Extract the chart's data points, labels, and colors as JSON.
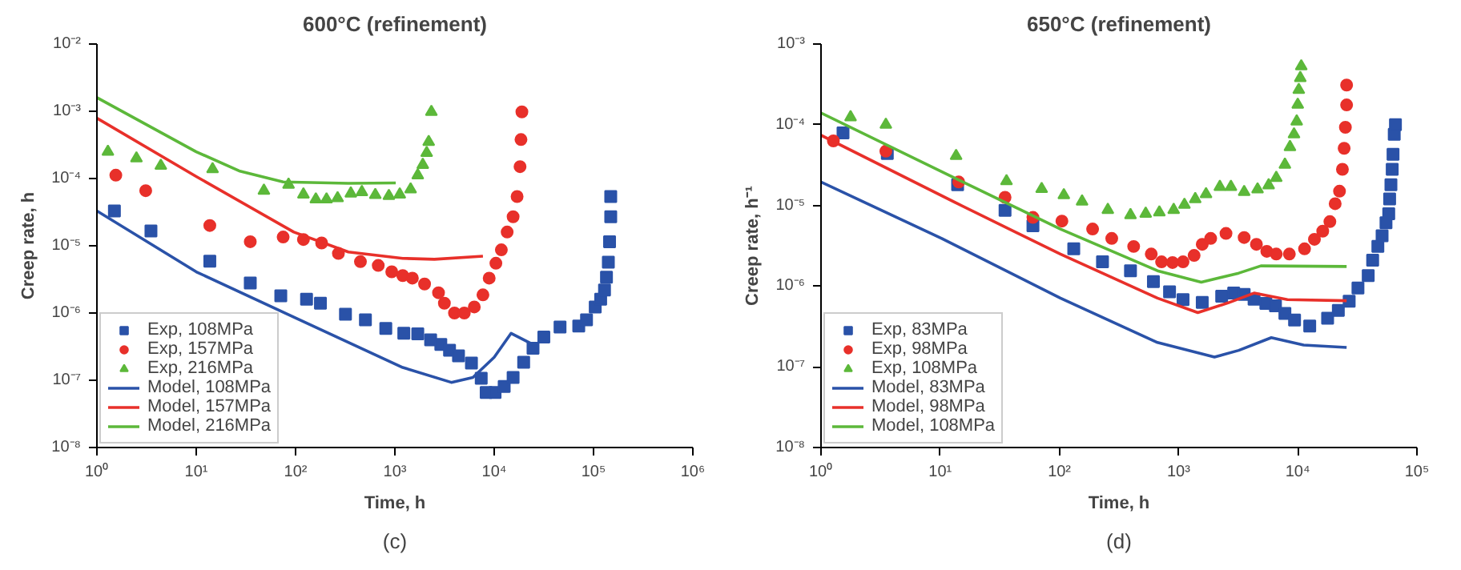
{
  "chart_data": [
    {
      "type": "scatter",
      "title": "600°C (refinement)",
      "xlabel": "Time, h",
      "ylabel": "Creep rate, h",
      "annotations": [
        "(c)"
      ],
      "log": "xy",
      "legend": "bottom left",
      "grid": false,
      "xlim": [
        1,
        1000000
      ],
      "xticks": [
        {
          "value": 1,
          "label": "10⁰"
        },
        {
          "value": 10,
          "label": "10¹"
        },
        {
          "value": 100,
          "label": "10²"
        },
        {
          "value": 1000,
          "label": "10³"
        },
        {
          "value": 10000,
          "label": "10⁴"
        },
        {
          "value": 100000,
          "label": "10⁵"
        },
        {
          "value": 1000000,
          "label": "10⁶"
        }
      ],
      "ylim": [
        1e-08,
        0.01
      ],
      "yticks": [
        {
          "value": 1e-08,
          "label": "10⁻⁸"
        },
        {
          "value": 1e-07,
          "label": "10⁻⁷"
        },
        {
          "value": 1e-06,
          "label": "10⁻⁶"
        },
        {
          "value": 1e-05,
          "label": "10⁻⁵"
        },
        {
          "value": 0.0001,
          "label": "10⁻⁴"
        },
        {
          "value": 0.001,
          "label": "10⁻³"
        },
        {
          "value": 0.01,
          "label": "10⁻²"
        }
      ],
      "series": [
        {
          "name": "Exp, 108MPa",
          "marker": "square",
          "color": "#2a52a8",
          "x": [
            1.5,
            3.5,
            13.7,
            35,
            71,
            129,
            178,
            318,
            505,
            810,
            1230,
            1700,
            2290,
            2900,
            3550,
            4370,
            5900,
            7400,
            8300,
            10200,
            12600,
            15500,
            19800,
            24600,
            31600,
            46000,
            71000,
            85000,
            104000,
            118000,
            129000,
            135000,
            141000,
            145000,
            149000,
            149000
          ],
          "values": [
            3.3e-05,
            1.66e-05,
            5.9e-06,
            2.8e-06,
            1.8e-06,
            1.6e-06,
            1.4e-06,
            9.6e-07,
            7.9e-07,
            5.9e-07,
            5e-07,
            4.9e-07,
            4e-07,
            3.4e-07,
            2.8e-07,
            2.3e-07,
            1.8e-07,
            1.07e-07,
            6.6e-08,
            6.6e-08,
            8.1e-08,
            1.1e-07,
            1.85e-07,
            3e-07,
            4.4e-07,
            6.2e-07,
            6.4e-07,
            7.9e-07,
            1.23e-06,
            1.6e-06,
            2.2e-06,
            3.4e-06,
            5.7e-06,
            1.15e-05,
            2.7e-05,
            5.4e-05
          ]
        },
        {
          "name": "Exp, 157MPa",
          "marker": "circle",
          "color": "#e8302a",
          "x": [
            1.55,
            3.1,
            13.7,
            35,
            75,
            120,
            183,
            270,
            450,
            680,
            930,
            1200,
            1500,
            1990,
            2750,
            3150,
            3980,
            5000,
            6300,
            7700,
            8900,
            10400,
            11800,
            13500,
            15500,
            17000,
            18200,
            18600,
            19000
          ],
          "values": [
            0.000112,
            6.6e-05,
            2e-05,
            1.15e-05,
            1.35e-05,
            1.24e-05,
            1.1e-05,
            7.7e-06,
            5.8e-06,
            5.1e-06,
            4.1e-06,
            3.6e-06,
            3.3e-06,
            2.7e-06,
            2e-06,
            1.4e-06,
            1e-06,
            1e-06,
            1.23e-06,
            1.86e-06,
            3.3e-06,
            5.5e-06,
            8.7e-06,
            1.6e-05,
            2.7e-05,
            5.4e-05,
            0.00015,
            0.00038,
            0.00098
          ]
        },
        {
          "name": "Exp, 216MPa",
          "marker": "triangle",
          "color": "#5cb83a",
          "x": [
            1.29,
            2.5,
            4.4,
            14.6,
            48,
            85,
            120,
            160,
            205,
            265,
            360,
            465,
            635,
            870,
            1120,
            1440,
            1700,
            1910,
            2090,
            2190,
            2330
          ],
          "values": [
            0.00025,
            0.0002,
            0.000155,
            0.000138,
            6.6e-05,
            8.1e-05,
            5.8e-05,
            4.9e-05,
            4.9e-05,
            5.1e-05,
            6e-05,
            6.3e-05,
            5.7e-05,
            5.5e-05,
            5.8e-05,
            6.9e-05,
            0.000112,
            0.00016,
            0.00024,
            0.00035,
            0.00098
          ]
        },
        {
          "name": "Model, 108MPa",
          "type": "line",
          "color": "#2a52a8",
          "x": [
            1,
            10,
            96,
            1200,
            3700,
            6100,
            10000,
            14800,
            24600
          ],
          "values": [
            3.3e-05,
            4.1e-06,
            8.7e-07,
            1.55e-07,
            9.3e-08,
            1.1e-07,
            2.2e-07,
            5e-07,
            3.4e-07
          ]
        },
        {
          "name": "Model, 157MPa",
          "type": "line",
          "color": "#e8302a",
          "x": [
            1,
            10,
            96,
            340,
            1200,
            2500,
            7700
          ],
          "values": [
            0.00079,
            0.000107,
            1.6e-05,
            8.1e-06,
            6.5e-06,
            6.3e-06,
            7e-06
          ]
        },
        {
          "name": "Model, 216MPa",
          "type": "line",
          "color": "#5cb83a",
          "x": [
            1,
            10,
            27,
            75,
            340,
            1020
          ],
          "values": [
            0.0016,
            0.00025,
            0.00013,
            8.9e-05,
            8.5e-05,
            8.6e-05
          ]
        }
      ]
    },
    {
      "type": "scatter",
      "title": "650°C (refinement)",
      "xlabel": "Time, h",
      "ylabel": "Creep rate, h⁻¹",
      "annotations": [
        "(d)"
      ],
      "log": "xy",
      "legend": "bottom left",
      "grid": false,
      "xlim": [
        1,
        100000
      ],
      "xticks": [
        {
          "value": 1,
          "label": "10⁰"
        },
        {
          "value": 10,
          "label": "10¹"
        },
        {
          "value": 100,
          "label": "10²"
        },
        {
          "value": 1000,
          "label": "10³"
        },
        {
          "value": 10000,
          "label": "10⁴"
        },
        {
          "value": 100000,
          "label": "10⁵"
        }
      ],
      "ylim": [
        1e-08,
        0.001
      ],
      "yticks": [
        {
          "value": 1e-08,
          "label": "10⁻⁸"
        },
        {
          "value": 1e-07,
          "label": "10⁻⁷"
        },
        {
          "value": 1e-06,
          "label": "10⁻⁶"
        },
        {
          "value": 1e-05,
          "label": "10⁻⁵"
        },
        {
          "value": 0.0001,
          "label": "10⁻⁴"
        },
        {
          "value": 0.001,
          "label": "10⁻³"
        }
      ],
      "series": [
        {
          "name": "Exp, 83MPa",
          "marker": "square",
          "color": "#2a52a8",
          "x": [
            1.53,
            3.6,
            14,
            35,
            60,
            132,
            230,
            395,
            615,
            840,
            1090,
            1580,
            2300,
            2900,
            3550,
            4300,
            5400,
            6500,
            7800,
            9400,
            12600,
            17800,
            21900,
            27000,
            32000,
            39000,
            42500,
            47000,
            51000,
            55000,
            58000,
            59000,
            60500,
            62000,
            63000,
            64500,
            66000
          ],
          "values": [
            7.9e-05,
            4.4e-05,
            1.8e-05,
            8.7e-06,
            5.6e-06,
            2.9e-06,
            2e-06,
            1.55e-06,
            1.14e-06,
            8.5e-07,
            6.8e-07,
            6.3e-07,
            7.5e-07,
            8.2e-07,
            7.9e-07,
            6.9e-07,
            6.1e-07,
            5.7e-07,
            4.6e-07,
            3.8e-07,
            3.2e-07,
            4e-07,
            5e-07,
            6.5e-07,
            9.5e-07,
            1.35e-06,
            2.1e-06,
            3.1e-06,
            4.2e-06,
            6.1e-06,
            7.9e-06,
            1.2e-05,
            1.8e-05,
            2.8e-05,
            4.3e-05,
            7.6e-05,
            0.0001
          ]
        },
        {
          "name": "Exp, 98MPa",
          "marker": "circle",
          "color": "#e8302a",
          "x": [
            1.27,
            3.5,
            14.3,
            35,
            60,
            105,
            190,
            275,
            420,
            590,
            720,
            890,
            1090,
            1350,
            1580,
            1860,
            2500,
            3550,
            4500,
            5500,
            6600,
            8500,
            11400,
            13800,
            16200,
            18600,
            20600,
            22400,
            23700,
            24500,
            25100,
            25700,
            25700
          ],
          "values": [
            6.3e-05,
            4.7e-05,
            1.95e-05,
            1.26e-05,
            7.1e-06,
            6.4e-06,
            5.1e-06,
            3.9e-06,
            3.1e-06,
            2.5e-06,
            2e-06,
            1.96e-06,
            2e-06,
            2.4e-06,
            3.3e-06,
            3.9e-06,
            4.5e-06,
            4e-06,
            3.3e-06,
            2.7e-06,
            2.5e-06,
            2.5e-06,
            2.9e-06,
            3.8e-06,
            4.8e-06,
            6.3e-06,
            1.05e-05,
            1.5e-05,
            2.8e-05,
            5.1e-05,
            9.3e-05,
            0.000176,
            0.00031
          ]
        },
        {
          "name": "Exp, 108MPa",
          "marker": "triangle",
          "color": "#5cb83a",
          "x": [
            1.77,
            3.5,
            13.6,
            36,
            71,
            109,
            155,
            255,
            395,
            530,
            690,
            910,
            1120,
            1380,
            1700,
            2220,
            2750,
            3550,
            4600,
            5700,
            6600,
            7800,
            8600,
            9300,
            9800,
            10000,
            10200,
            10500,
            10700
          ],
          "values": [
            0.000124,
            0.0001,
            4.1e-05,
            2e-05,
            1.6e-05,
            1.34e-05,
            1.12e-05,
            8.8e-06,
            7.6e-06,
            7.9e-06,
            8.2e-06,
            8.8e-06,
            1.02e-05,
            1.2e-05,
            1.38e-05,
            1.7e-05,
            1.7e-05,
            1.47e-05,
            1.58e-05,
            1.78e-05,
            2.2e-05,
            3.2e-05,
            5.3e-05,
            7.6e-05,
            0.00011,
            0.000177,
            0.00027,
            0.00038,
            0.00053
          ]
        },
        {
          "name": "Model, 83MPa",
          "type": "line",
          "color": "#2a52a8",
          "x": [
            1,
            10.3,
            102,
            665,
            2000,
            3200,
            6000,
            11200,
            25700
          ],
          "values": [
            1.95e-05,
            3.9e-06,
            7.1e-07,
            2e-07,
            1.32e-07,
            1.6e-07,
            2.3e-07,
            1.86e-07,
            1.74e-07
          ]
        },
        {
          "name": "Model, 98MPa",
          "type": "line",
          "color": "#e8302a",
          "x": [
            1,
            14,
            102,
            665,
            1450,
            2600,
            4300,
            8200,
            25700
          ],
          "values": [
            7.4e-05,
            1.05e-05,
            2.5e-06,
            7.1e-07,
            4.7e-07,
            6.2e-07,
            8.2e-07,
            6.8e-07,
            6.6e-07
          ]
        },
        {
          "name": "Model, 108MPa",
          "type": "line",
          "color": "#5cb83a",
          "x": [
            1,
            14,
            102,
            665,
            1550,
            3200,
            4900,
            25700
          ],
          "values": [
            0.00014,
            2.1e-05,
            5.1e-06,
            1.55e-06,
            1.12e-06,
            1.45e-06,
            1.78e-06,
            1.75e-06
          ]
        }
      ]
    }
  ]
}
